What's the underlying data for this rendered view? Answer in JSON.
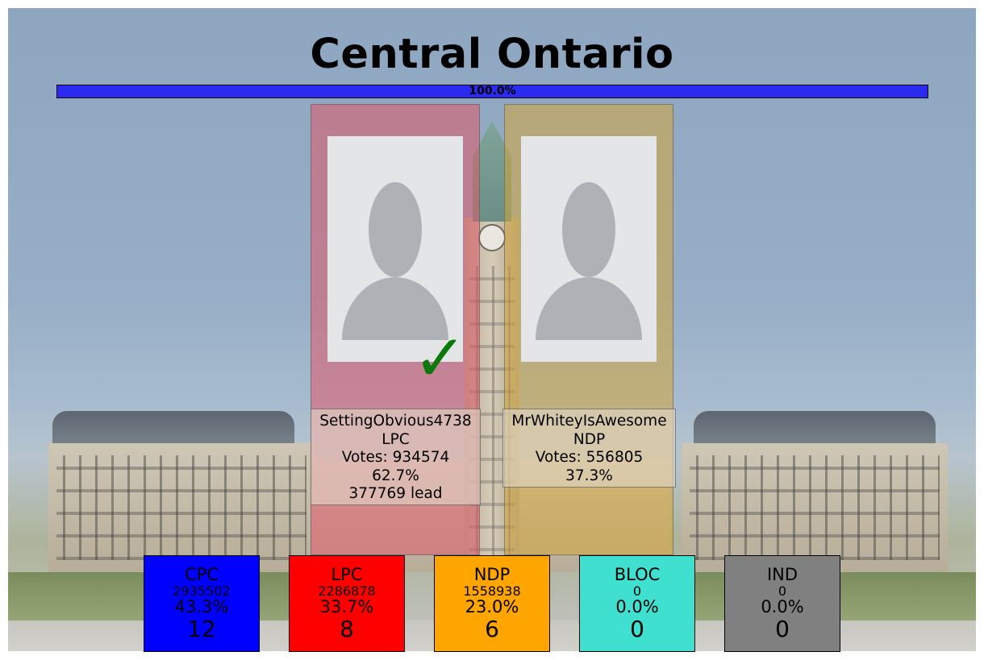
{
  "title": "Central Ontario",
  "progress": {
    "value": 100.0,
    "label": "100.0%",
    "color": "#2a2af0"
  },
  "candidates": [
    {
      "name": "SettingObvious4738",
      "party": "LPC",
      "votes": "Votes: 934574",
      "percent": "62.7%",
      "lead": "377769 lead",
      "color": "#e05a6a",
      "winner": true,
      "winner_icon": "checkmark-icon",
      "winner_mark": "✓"
    },
    {
      "name": "MrWhiteyIsAwesome",
      "party": "NDP",
      "votes": "Votes: 556805",
      "percent": "37.3%",
      "color": "#d4a53a",
      "winner": false
    }
  ],
  "parties": [
    {
      "name": "CPC",
      "votes": "2935502",
      "percent": "43.3%",
      "seats": "12",
      "color": "#0000ff"
    },
    {
      "name": "LPC",
      "votes": "2286878",
      "percent": "33.7%",
      "seats": "8",
      "color": "#ff0000"
    },
    {
      "name": "NDP",
      "votes": "1558938",
      "percent": "23.0%",
      "seats": "6",
      "color": "#ffa500"
    },
    {
      "name": "BLOC",
      "votes": "0",
      "percent": "0.0%",
      "seats": "0",
      "color": "#40e0d0"
    },
    {
      "name": "IND",
      "votes": "0",
      "percent": "0.0%",
      "seats": "0",
      "color": "#808080"
    }
  ],
  "icons": {
    "portrait": "person-silhouette-icon"
  }
}
